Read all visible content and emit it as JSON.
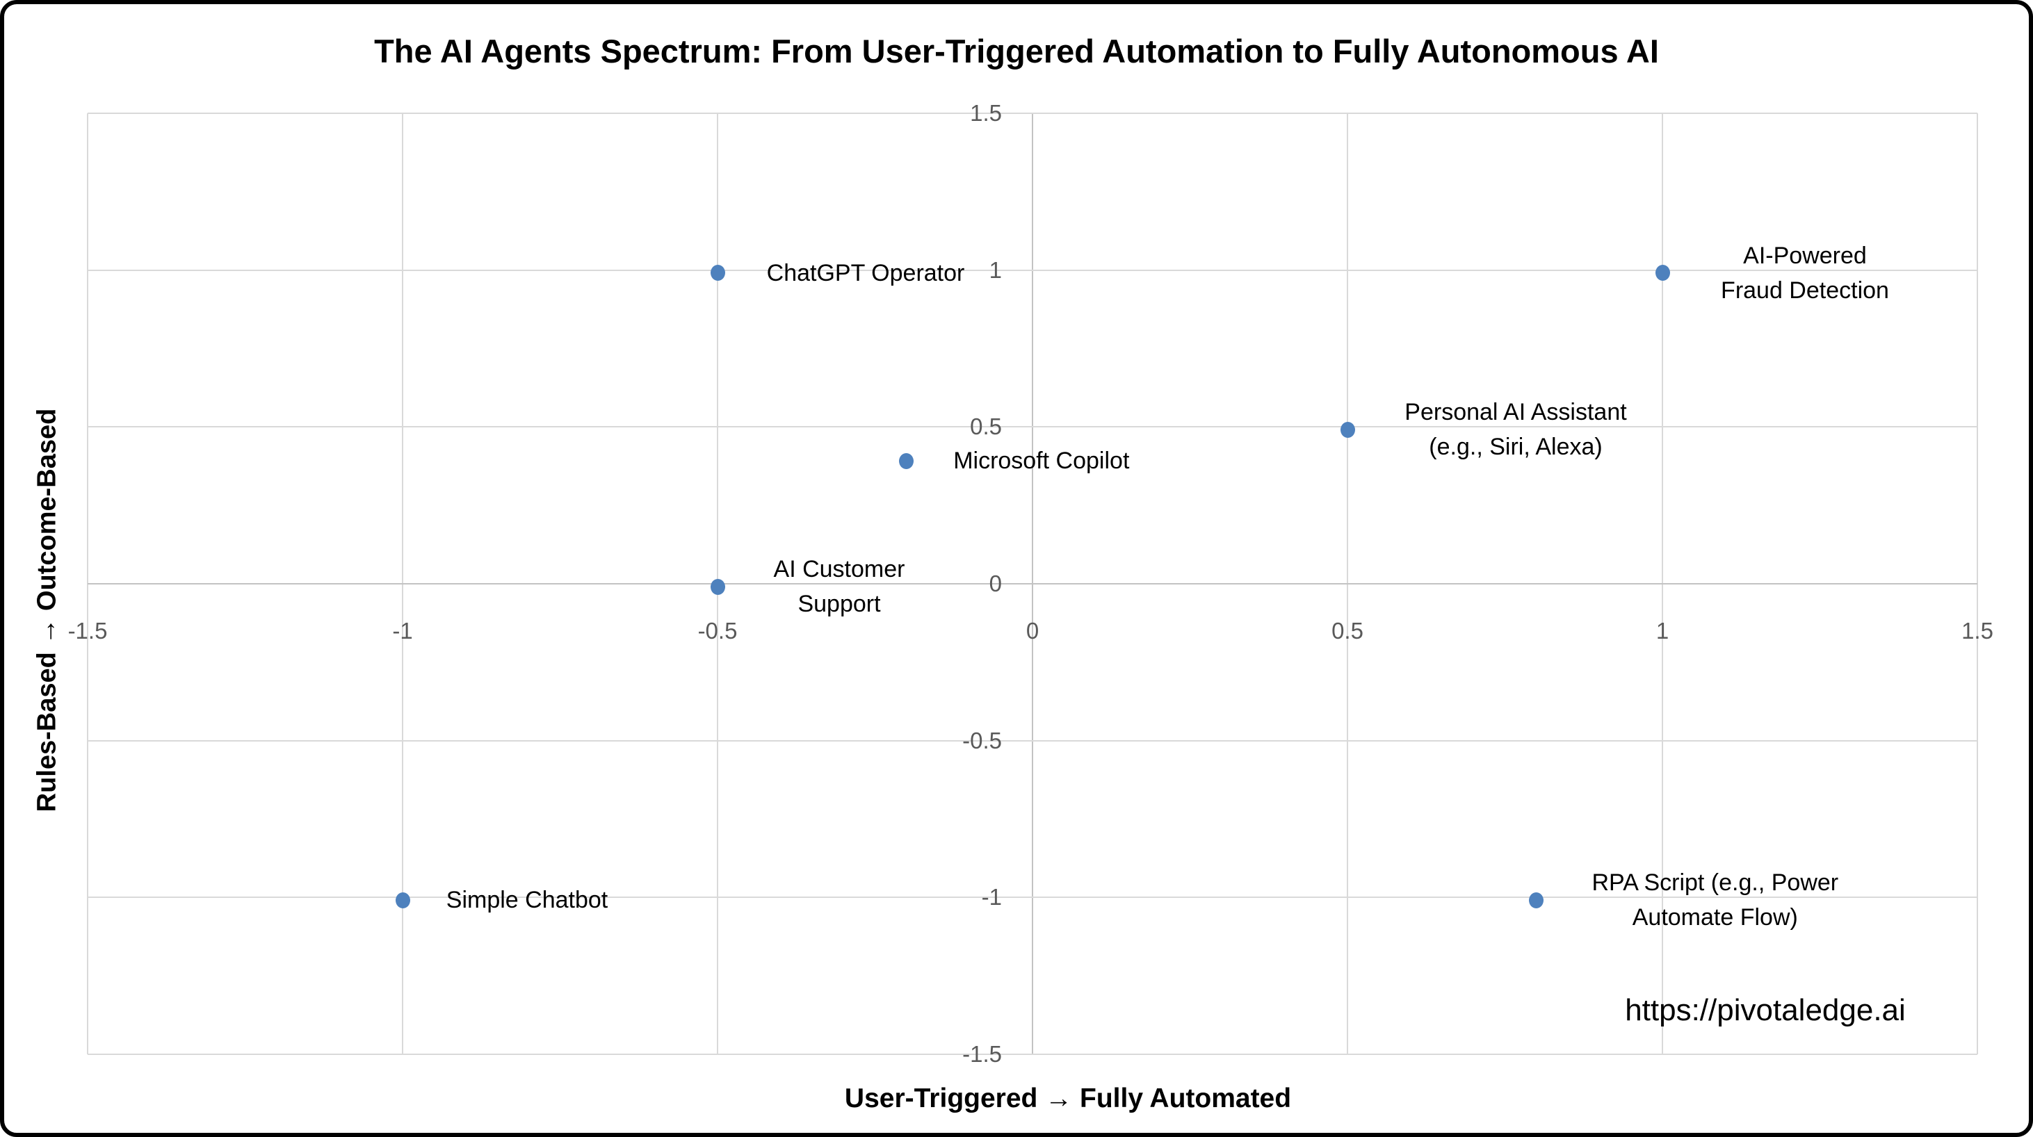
{
  "chart_data": {
    "type": "scatter",
    "title": "The AI Agents Spectrum: From User-Triggered Automation to Fully Autonomous AI",
    "xlabel": "User-Triggered → Fully Automated",
    "ylabel": "Rules-Based → Outcome-Based",
    "xlim": [
      -1.5,
      1.5
    ],
    "ylim": [
      -1.5,
      1.5
    ],
    "grid": true,
    "legend": "none",
    "marker_color": "#4e81bd",
    "gridline_color": "#d9d9d9",
    "axisline_color": "#c3c3c3",
    "tick_label_color": "#595959",
    "x_ticks": [
      {
        "value": -1.5,
        "label": "-1.5"
      },
      {
        "value": -1,
        "label": "-1"
      },
      {
        "value": -0.5,
        "label": "-0.5"
      },
      {
        "value": 0,
        "label": "0"
      },
      {
        "value": 0.5,
        "label": "0.5"
      },
      {
        "value": 1,
        "label": "1"
      },
      {
        "value": 1.5,
        "label": "1.5"
      }
    ],
    "y_ticks": [
      {
        "value": 1.5,
        "label": "1.5"
      },
      {
        "value": 1,
        "label": "1"
      },
      {
        "value": 0.5,
        "label": "0.5"
      },
      {
        "value": 0,
        "label": "0"
      },
      {
        "value": -0.5,
        "label": "-0.5"
      },
      {
        "value": -1,
        "label": "-1"
      },
      {
        "value": -1.5,
        "label": "-1.5"
      }
    ],
    "points": [
      {
        "name": "Simple Chatbot",
        "x": -1,
        "y": -1,
        "label_lines": [
          "Simple Chatbot"
        ],
        "label_dx": 179
      },
      {
        "name": "AI Customer Support",
        "x": -0.5,
        "y": 0,
        "label_lines": [
          "AI Customer",
          "Support"
        ],
        "label_dx": 175
      },
      {
        "name": "ChatGPT Operator",
        "x": -0.5,
        "y": 1,
        "label_lines": [
          "ChatGPT Operator"
        ],
        "label_dx": 213
      },
      {
        "name": "Microsoft Copilot",
        "x": -0.2,
        "y": 0.4,
        "label_lines": [
          "Microsoft Copilot"
        ],
        "label_dx": 194
      },
      {
        "name": "Personal AI Assistant (e.g., Siri, Alexa)",
        "x": 0.5,
        "y": 0.5,
        "label_lines": [
          "Personal AI Assistant",
          "(e.g., Siri, Alexa)"
        ],
        "label_dx": 242
      },
      {
        "name": "AI-Powered Fraud Detection",
        "x": 1,
        "y": 1,
        "label_lines": [
          "AI-Powered",
          "Fraud Detection"
        ],
        "label_dx": 205
      },
      {
        "name": "RPA Script (e.g., Power Automate Flow)",
        "x": 0.8,
        "y": -1,
        "label_lines": [
          "RPA Script (e.g., Power",
          "Automate Flow)"
        ],
        "label_dx": 257
      }
    ]
  },
  "footer": {
    "url": "https://pivotaledge.ai"
  }
}
